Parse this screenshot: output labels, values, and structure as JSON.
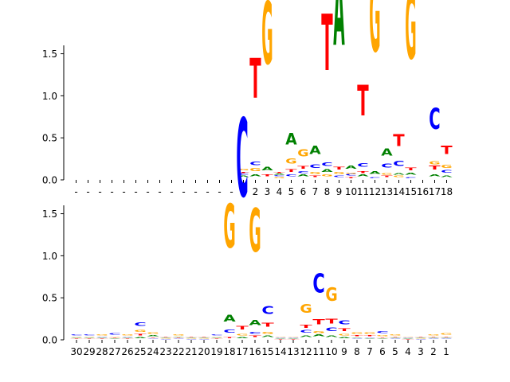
{
  "chart_data": [
    {
      "type": "sequence-logo",
      "ylim": [
        0,
        1.6
      ],
      "yticks": [
        "0.0",
        "0.5",
        "1.0",
        "1.5"
      ],
      "ytick_values": [
        0,
        0.5,
        1.0,
        1.5
      ],
      "xtick_labels": [
        "-",
        "-",
        "-",
        "-",
        "-",
        "-",
        "-",
        "-",
        "-",
        "-",
        "-",
        "-",
        "-",
        "-",
        "1",
        "2",
        "3",
        "4",
        "5",
        "6",
        "7",
        "8",
        "9",
        "10",
        "11",
        "12",
        "13",
        "14",
        "15",
        "16",
        "17",
        "18"
      ],
      "columns": [
        {
          "letters": []
        },
        {
          "letters": []
        },
        {
          "letters": []
        },
        {
          "letters": []
        },
        {
          "letters": []
        },
        {
          "letters": []
        },
        {
          "letters": []
        },
        {
          "letters": []
        },
        {
          "letters": []
        },
        {
          "letters": []
        },
        {
          "letters": []
        },
        {
          "letters": []
        },
        {
          "letters": []
        },
        {
          "letters": []
        },
        {
          "letters": [
            [
              "A",
              0.03
            ],
            [
              "C",
              0.03
            ],
            [
              "T",
              0.02
            ],
            [
              "G",
              0.03
            ]
          ]
        },
        {
          "letters": [
            [
              "A",
              0.04
            ],
            [
              "G",
              0.06
            ],
            [
              "C",
              0.07
            ],
            [
              "T",
              0.76
            ]
          ]
        },
        {
          "letters": [
            [
              "T",
              0.04
            ],
            [
              "A",
              0.07
            ],
            [
              "G",
              1.2
            ]
          ]
        },
        {
          "letters": [
            [
              "G",
              0.02
            ],
            [
              "C",
              0.02
            ],
            [
              "A",
              0.02
            ],
            [
              "T",
              0.02
            ]
          ]
        },
        {
          "letters": [
            [
              "C",
              0.04
            ],
            [
              "T",
              0.05
            ],
            [
              "G",
              0.1
            ],
            [
              "A",
              0.22
            ]
          ]
        },
        {
          "letters": [
            [
              "A",
              0.04
            ],
            [
              "C",
              0.04
            ],
            [
              "T",
              0.05
            ],
            [
              "G",
              0.14
            ]
          ]
        },
        {
          "letters": [
            [
              "T",
              0.03
            ],
            [
              "G",
              0.04
            ],
            [
              "C",
              0.07
            ],
            [
              "A",
              0.16
            ]
          ]
        },
        {
          "letters": [
            [
              "G",
              0.04
            ],
            [
              "A",
              0.05
            ],
            [
              "C",
              0.07
            ],
            [
              "T",
              1.08
            ]
          ]
        },
        {
          "letters": [
            [
              "C",
              0.03
            ],
            [
              "G",
              0.04
            ],
            [
              "T",
              0.05
            ],
            [
              "A",
              1.4
            ]
          ]
        },
        {
          "letters": [
            [
              "T",
              0.02
            ],
            [
              "C",
              0.03
            ],
            [
              "G",
              0.02
            ],
            [
              "A",
              0.06
            ]
          ]
        },
        {
          "letters": [
            [
              "A",
              0.04
            ],
            [
              "T",
              0.04
            ],
            [
              "C",
              0.07
            ],
            [
              "T",
              0.58
            ]
          ]
        },
        {
          "letters": [
            [
              "C",
              0.02
            ],
            [
              "A",
              0.05
            ],
            [
              "G",
              1.38
            ]
          ]
        },
        {
          "letters": [
            [
              "T",
              0.03
            ],
            [
              "G",
              0.03
            ],
            [
              "C",
              0.08
            ],
            [
              "A",
              0.14
            ]
          ]
        },
        {
          "letters": [
            [
              "G",
              0.03
            ],
            [
              "A",
              0.03
            ],
            [
              "C",
              0.1
            ],
            [
              "T",
              0.23
            ]
          ]
        },
        {
          "letters": [
            [
              "C",
              0.02
            ],
            [
              "A",
              0.04
            ],
            [
              "T",
              0.05
            ],
            [
              "G",
              1.26
            ]
          ]
        },
        {
          "letters": []
        },
        {
          "letters": [
            [
              "A",
              0.04
            ],
            [
              "T",
              0.08
            ],
            [
              "G",
              0.06
            ],
            [
              "C",
              0.4
            ]
          ]
        },
        {
          "letters": [
            [
              "A",
              0.03
            ],
            [
              "C",
              0.05
            ],
            [
              "G",
              0.06
            ],
            [
              "T",
              0.16
            ]
          ]
        }
      ]
    },
    {
      "type": "sequence-logo",
      "ylim": [
        0,
        1.6
      ],
      "yticks": [
        "0.0",
        "0.5",
        "1.0",
        "1.5"
      ],
      "ytick_values": [
        0,
        0.5,
        1.0,
        1.5
      ],
      "xtick_labels": [
        "30",
        "29",
        "28",
        "27",
        "26",
        "25",
        "24",
        "23",
        "22",
        "21",
        "20",
        "19",
        "18",
        "17",
        "16",
        "15",
        "14",
        "13",
        "12",
        "11",
        "10",
        "9",
        "8",
        "7",
        "6",
        "5",
        "4",
        "3",
        "2",
        "1"
      ],
      "columns": [
        {
          "letters": [
            [
              "T",
              0.01
            ],
            [
              "A",
              0.01
            ],
            [
              "G",
              0.01
            ],
            [
              "C",
              0.02
            ]
          ]
        },
        {
          "letters": [
            [
              "T",
              0.01
            ],
            [
              "A",
              0.01
            ],
            [
              "G",
              0.01
            ],
            [
              "C",
              0.02
            ]
          ]
        },
        {
          "letters": [
            [
              "T",
              0.01
            ],
            [
              "A",
              0.01
            ],
            [
              "C",
              0.01
            ],
            [
              "G",
              0.02
            ]
          ]
        },
        {
          "letters": [
            [
              "A",
              0.01
            ],
            [
              "T",
              0.01
            ],
            [
              "G",
              0.01
            ],
            [
              "C",
              0.03
            ]
          ]
        },
        {
          "letters": [
            [
              "T",
              0.01
            ],
            [
              "A",
              0.01
            ],
            [
              "C",
              0.01
            ],
            [
              "G",
              0.02
            ]
          ]
        },
        {
          "letters": [
            [
              "A",
              0.02
            ],
            [
              "T",
              0.03
            ],
            [
              "G",
              0.04
            ],
            [
              "C",
              0.07
            ]
          ]
        },
        {
          "letters": [
            [
              "C",
              0.01
            ],
            [
              "T",
              0.01
            ],
            [
              "A",
              0.02
            ],
            [
              "G",
              0.03
            ]
          ]
        },
        {
          "letters": [
            [
              "C",
              0.005
            ],
            [
              "G",
              0.005
            ],
            [
              "A",
              0.01
            ],
            [
              "T",
              0.01
            ]
          ]
        },
        {
          "letters": [
            [
              "C",
              0.01
            ],
            [
              "T",
              0.01
            ],
            [
              "A",
              0.01
            ],
            [
              "G",
              0.02
            ]
          ]
        },
        {
          "letters": [
            [
              "C",
              0.005
            ],
            [
              "G",
              0.005
            ],
            [
              "A",
              0.01
            ],
            [
              "T",
              0.01
            ]
          ]
        },
        {
          "letters": [
            [
              "C",
              0.005
            ],
            [
              "G",
              0.005
            ],
            [
              "A",
              0.01
            ],
            [
              "T",
              0.01
            ]
          ]
        },
        {
          "letters": [
            [
              "T",
              0.01
            ],
            [
              "A",
              0.01
            ],
            [
              "G",
              0.01
            ],
            [
              "C",
              0.02
            ]
          ]
        },
        {
          "letters": [
            [
              "T",
              0.02
            ],
            [
              "C",
              0.06
            ],
            [
              "A",
              0.13
            ],
            [
              "G",
              0.84
            ]
          ]
        },
        {
          "letters": [
            [
              "A",
              0.02
            ],
            [
              "G",
              0.03
            ],
            [
              "T",
              0.07
            ],
            [
              "C",
              1.5
            ]
          ]
        },
        {
          "letters": [
            [
              "T",
              0.03
            ],
            [
              "C",
              0.04
            ],
            [
              "A",
              0.1
            ],
            [
              "G",
              0.83
            ]
          ]
        },
        {
          "letters": [
            [
              "A",
              0.03
            ],
            [
              "G",
              0.04
            ],
            [
              "T",
              0.08
            ],
            [
              "C",
              0.15
            ]
          ]
        },
        {
          "letters": [
            [
              "T",
              0.005
            ],
            [
              "A",
              0.005
            ],
            [
              "C",
              0.01
            ],
            [
              "G",
              0.01
            ]
          ]
        },
        {
          "letters": [
            [
              "T",
              0.005
            ],
            [
              "A",
              0.005
            ],
            [
              "C",
              0.01
            ],
            [
              "G",
              0.01
            ]
          ]
        },
        {
          "letters": [
            [
              "A",
              0.03
            ],
            [
              "C",
              0.05
            ],
            [
              "T",
              0.06
            ],
            [
              "G",
              0.17
            ]
          ]
        },
        {
          "letters": [
            [
              "A",
              0.04
            ],
            [
              "G",
              0.04
            ],
            [
              "T",
              0.1
            ],
            [
              "C",
              0.36
            ]
          ]
        },
        {
          "letters": [
            [
              "A",
              0.03
            ],
            [
              "C",
              0.07
            ],
            [
              "T",
              0.09
            ],
            [
              "G",
              0.26
            ]
          ]
        },
        {
          "letters": [
            [
              "A",
              0.02
            ],
            [
              "G",
              0.03
            ],
            [
              "T",
              0.05
            ],
            [
              "C",
              0.08
            ]
          ]
        },
        {
          "letters": [
            [
              "C",
              0.01
            ],
            [
              "A",
              0.01
            ],
            [
              "T",
              0.02
            ],
            [
              "G",
              0.03
            ]
          ]
        },
        {
          "letters": [
            [
              "A",
              0.01
            ],
            [
              "C",
              0.01
            ],
            [
              "T",
              0.02
            ],
            [
              "G",
              0.03
            ]
          ]
        },
        {
          "letters": [
            [
              "A",
              0.01
            ],
            [
              "T",
              0.01
            ],
            [
              "G",
              0.02
            ],
            [
              "C",
              0.04
            ]
          ]
        },
        {
          "letters": [
            [
              "C",
              0.01
            ],
            [
              "A",
              0.01
            ],
            [
              "T",
              0.01
            ],
            [
              "G",
              0.02
            ]
          ]
        },
        {
          "letters": [
            [
              "T",
              0.005
            ],
            [
              "A",
              0.005
            ],
            [
              "C",
              0.01
            ],
            [
              "G",
              0.01
            ]
          ]
        },
        {
          "letters": [
            [
              "C",
              0.005
            ],
            [
              "G",
              0.005
            ],
            [
              "A",
              0.01
            ],
            [
              "T",
              0.01
            ]
          ]
        },
        {
          "letters": [
            [
              "C",
              0.01
            ],
            [
              "A",
              0.01
            ],
            [
              "T",
              0.01
            ],
            [
              "G",
              0.02
            ]
          ]
        },
        {
          "letters": [
            [
              "C",
              0.01
            ],
            [
              "A",
              0.01
            ],
            [
              "T",
              0.01
            ],
            [
              "G",
              0.03
            ]
          ]
        }
      ]
    }
  ],
  "colors": {
    "A": "#008000",
    "C": "#0000ff",
    "G": "#ffa500",
    "T": "#ff0000"
  }
}
